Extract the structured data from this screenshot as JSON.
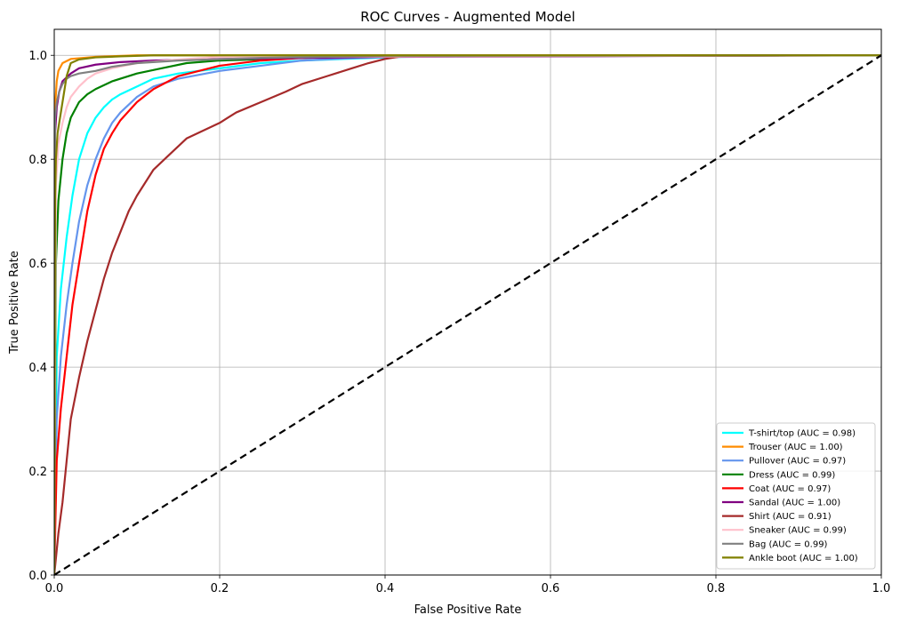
{
  "chart_data": {
    "type": "line",
    "title": "ROC Curves - Augmented Model",
    "xlabel": "False Positive Rate",
    "ylabel": "True Positive Rate",
    "xlim": [
      0,
      1
    ],
    "ylim": [
      0,
      1.05
    ],
    "xticks": [
      "0.0",
      "0.2",
      "0.4",
      "0.6",
      "0.8",
      "1.0"
    ],
    "yticks": [
      "0.0",
      "0.2",
      "0.4",
      "0.6",
      "0.8",
      "1.0"
    ],
    "grid": true,
    "legend_position": "lower-right",
    "series": [
      {
        "name": "T-shirt/top (AUC = 0.98)",
        "color": "#00ffff",
        "x": [
          0,
          0.003,
          0.008,
          0.015,
          0.022,
          0.03,
          0.04,
          0.05,
          0.06,
          0.07,
          0.08,
          0.1,
          0.12,
          0.15,
          0.2,
          0.25,
          0.3,
          0.35,
          0.42,
          0.6,
          1.0
        ],
        "y": [
          0,
          0.42,
          0.55,
          0.65,
          0.73,
          0.8,
          0.85,
          0.88,
          0.9,
          0.915,
          0.925,
          0.94,
          0.955,
          0.965,
          0.975,
          0.985,
          0.99,
          0.993,
          0.997,
          0.999,
          1.0
        ]
      },
      {
        "name": "Trouser (AUC = 1.00)",
        "color": "#ff8c00",
        "x": [
          0,
          0.001,
          0.003,
          0.005,
          0.01,
          0.02,
          0.05,
          0.1,
          1.0
        ],
        "y": [
          0,
          0.9,
          0.95,
          0.97,
          0.985,
          0.993,
          0.997,
          1.0,
          1.0
        ]
      },
      {
        "name": "Pullover (AUC = 0.97)",
        "color": "#6495ed",
        "x": [
          0,
          0.003,
          0.008,
          0.015,
          0.022,
          0.03,
          0.04,
          0.05,
          0.06,
          0.07,
          0.08,
          0.1,
          0.12,
          0.15,
          0.2,
          0.25,
          0.3,
          0.35,
          0.42,
          1.0
        ],
        "y": [
          0,
          0.3,
          0.42,
          0.52,
          0.6,
          0.68,
          0.75,
          0.8,
          0.84,
          0.87,
          0.89,
          0.92,
          0.94,
          0.955,
          0.97,
          0.98,
          0.99,
          0.994,
          0.998,
          1.0
        ]
      },
      {
        "name": "Dress (AUC = 0.99)",
        "color": "#008000",
        "x": [
          0,
          0.002,
          0.005,
          0.01,
          0.015,
          0.02,
          0.03,
          0.04,
          0.05,
          0.07,
          0.1,
          0.13,
          0.16,
          0.2,
          0.3,
          0.42,
          1.0
        ],
        "y": [
          0,
          0.6,
          0.72,
          0.8,
          0.85,
          0.88,
          0.91,
          0.925,
          0.935,
          0.95,
          0.965,
          0.975,
          0.985,
          0.99,
          0.995,
          0.999,
          1.0
        ]
      },
      {
        "name": "Coat (AUC = 0.97)",
        "color": "#ff0000",
        "x": [
          0,
          0.003,
          0.008,
          0.015,
          0.022,
          0.03,
          0.04,
          0.05,
          0.06,
          0.07,
          0.08,
          0.1,
          0.12,
          0.15,
          0.2,
          0.25,
          0.3,
          0.35,
          0.42,
          1.0
        ],
        "y": [
          0,
          0.22,
          0.32,
          0.42,
          0.52,
          0.6,
          0.7,
          0.77,
          0.82,
          0.85,
          0.875,
          0.91,
          0.935,
          0.96,
          0.98,
          0.99,
          0.995,
          0.998,
          0.999,
          1.0
        ]
      },
      {
        "name": "Sandal (AUC = 1.00)",
        "color": "#800080",
        "x": [
          0,
          0.001,
          0.003,
          0.006,
          0.01,
          0.02,
          0.03,
          0.05,
          0.08,
          0.12,
          0.2,
          0.4,
          1.0
        ],
        "y": [
          0,
          0.85,
          0.9,
          0.93,
          0.95,
          0.965,
          0.975,
          0.982,
          0.987,
          0.99,
          0.993,
          0.997,
          1.0
        ]
      },
      {
        "name": "Shirt (AUC = 0.91)",
        "color": "#a52a2a",
        "x": [
          0,
          0.005,
          0.01,
          0.015,
          0.02,
          0.03,
          0.04,
          0.05,
          0.06,
          0.07,
          0.08,
          0.09,
          0.1,
          0.12,
          0.14,
          0.16,
          0.18,
          0.2,
          0.22,
          0.25,
          0.28,
          0.3,
          0.33,
          0.36,
          0.38,
          0.4,
          0.42,
          0.6,
          1.0
        ],
        "y": [
          0,
          0.08,
          0.14,
          0.22,
          0.3,
          0.38,
          0.45,
          0.51,
          0.57,
          0.62,
          0.66,
          0.7,
          0.73,
          0.78,
          0.81,
          0.84,
          0.855,
          0.87,
          0.89,
          0.91,
          0.93,
          0.945,
          0.96,
          0.975,
          0.985,
          0.993,
          0.998,
          0.999,
          1.0
        ]
      },
      {
        "name": "Sneaker (AUC = 0.99)",
        "color": "#ffc0cb",
        "x": [
          0,
          0.002,
          0.005,
          0.01,
          0.015,
          0.02,
          0.03,
          0.04,
          0.05,
          0.07,
          0.1,
          0.15,
          0.2,
          1.0
        ],
        "y": [
          0,
          0.75,
          0.83,
          0.87,
          0.9,
          0.92,
          0.94,
          0.955,
          0.965,
          0.975,
          0.985,
          0.992,
          0.997,
          1.0
        ]
      },
      {
        "name": "Bag (AUC = 0.99)",
        "color": "#808080",
        "x": [
          0,
          0.001,
          0.003,
          0.006,
          0.01,
          0.015,
          0.02,
          0.03,
          0.05,
          0.07,
          0.1,
          0.15,
          0.25,
          0.4,
          1.0
        ],
        "y": [
          0,
          0.88,
          0.91,
          0.93,
          0.945,
          0.955,
          0.96,
          0.965,
          0.97,
          0.978,
          0.985,
          0.99,
          0.995,
          0.999,
          1.0
        ]
      },
      {
        "name": "Ankle boot (AUC = 1.00)",
        "color": "#808000",
        "x": [
          0,
          0.001,
          0.002,
          0.004,
          0.006,
          0.008,
          0.01,
          0.012,
          0.015,
          0.02,
          0.03,
          0.05,
          0.08,
          0.12,
          1.0
        ],
        "y": [
          0,
          0.72,
          0.8,
          0.85,
          0.87,
          0.89,
          0.91,
          0.93,
          0.96,
          0.985,
          0.992,
          0.996,
          0.998,
          1.0,
          1.0
        ]
      }
    ],
    "reference_line": {
      "x": [
        0,
        1
      ],
      "y": [
        0,
        1
      ],
      "color": "#000000",
      "style": "dashed"
    }
  }
}
